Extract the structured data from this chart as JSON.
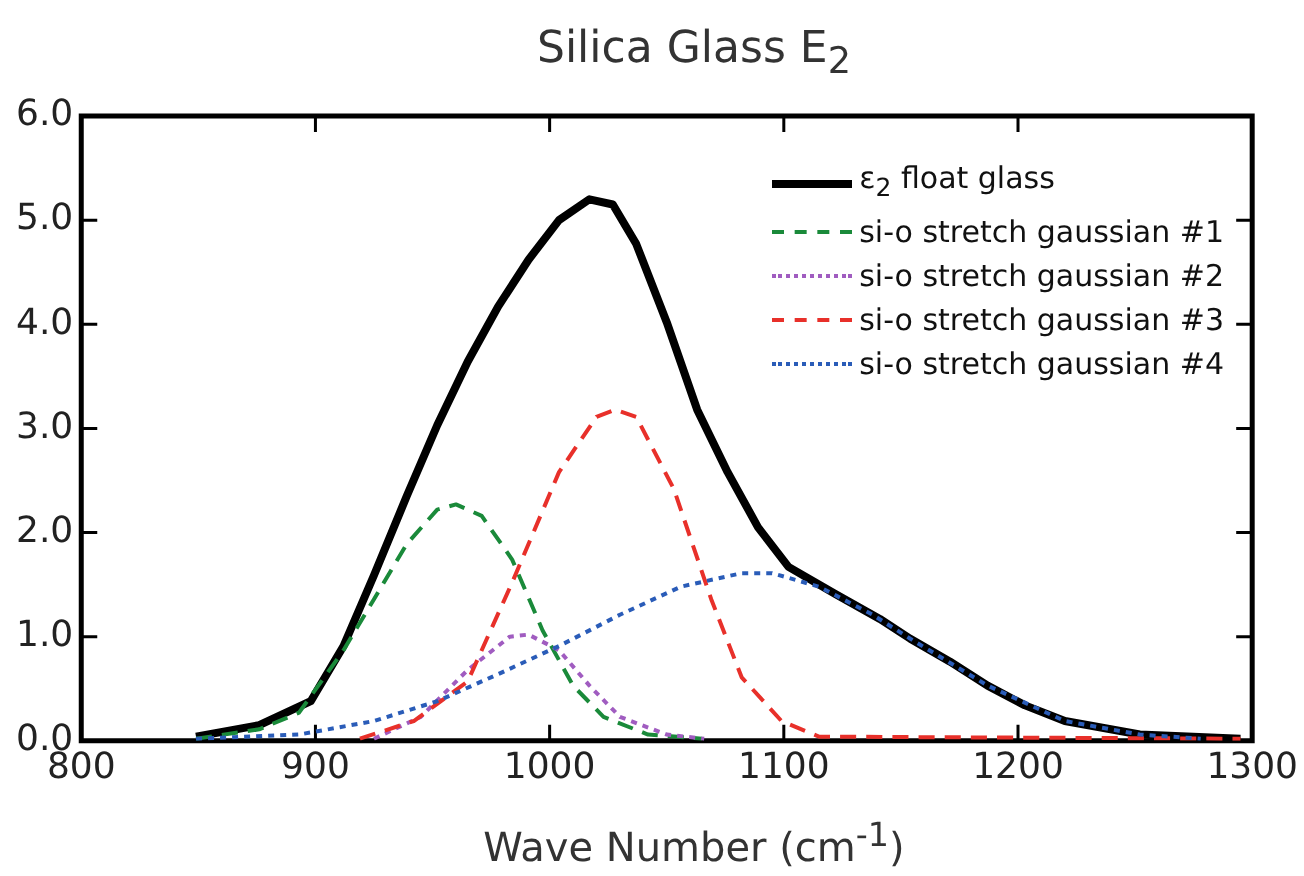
{
  "chart_data": {
    "type": "line",
    "title": "Silica Glass E$_{2}$",
    "xlabel": "Wave Number (cm$^{-1}$)",
    "xlim": [
      800,
      1300
    ],
    "xticks": [
      800,
      900,
      1000,
      1100,
      1200,
      1300
    ],
    "ylim": [
      0,
      6
    ],
    "yticks": [
      {
        "value": 0,
        "label": "0.0"
      },
      {
        "value": 1,
        "label": "1.0"
      },
      {
        "value": 2,
        "label": "2.0"
      },
      {
        "value": 3,
        "label": "3.0"
      },
      {
        "value": 4,
        "label": "4.0"
      },
      {
        "value": 5,
        "label": "5.0"
      },
      {
        "value": 6,
        "label": "6.0"
      }
    ],
    "grid": false,
    "legend": "top right",
    "marker": "none",
    "series": [
      {
        "name": "ε$_{2}$ float glass",
        "color": "#000000",
        "line_style": "solid",
        "x": [
          849,
          876,
          898,
          912,
          925,
          939,
          952,
          965,
          978,
          991,
          1004,
          1017,
          1027,
          1037,
          1050,
          1063,
          1076,
          1089,
          1102,
          1122,
          1141,
          1154,
          1171,
          1187,
          1203,
          1220,
          1252,
          1295
        ],
        "values": [
          0.04,
          0.15,
          0.38,
          0.91,
          1.59,
          2.35,
          3.03,
          3.64,
          4.17,
          4.62,
          5.0,
          5.2,
          5.15,
          4.77,
          4.02,
          3.18,
          2.58,
          2.05,
          1.67,
          1.41,
          1.17,
          0.98,
          0.76,
          0.53,
          0.34,
          0.19,
          0.06,
          0.02
        ]
      },
      {
        "name": "si-o stretch gaussian #1",
        "color": "#1a8a3a",
        "line_style": "dashed",
        "x": [
          849,
          876,
          893,
          912,
          925,
          939,
          952,
          960,
          971,
          984,
          997,
          1010,
          1023,
          1042,
          1065
        ],
        "values": [
          0.02,
          0.11,
          0.27,
          0.87,
          1.36,
          1.89,
          2.22,
          2.27,
          2.16,
          1.74,
          1.06,
          0.53,
          0.23,
          0.06,
          0.02
        ]
      },
      {
        "name": "si-o stretch gaussian #2",
        "color": "#a05cc0",
        "line_style": "dotted",
        "x": [
          925,
          945,
          965,
          983,
          991,
          1004,
          1017,
          1030,
          1050,
          1066
        ],
        "values": [
          0.02,
          0.23,
          0.68,
          1.0,
          1.02,
          0.87,
          0.53,
          0.23,
          0.06,
          0.02
        ]
      },
      {
        "name": "si-o stretch gaussian #3",
        "color": "#e8302a",
        "line_style": "dashed",
        "x": [
          919,
          942,
          965,
          984,
          1004,
          1020,
          1028,
          1037,
          1053,
          1069,
          1082,
          1099,
          1115,
          1295
        ],
        "values": [
          0.02,
          0.19,
          0.57,
          1.52,
          2.58,
          3.11,
          3.18,
          3.11,
          2.42,
          1.36,
          0.61,
          0.19,
          0.04,
          0.02
        ]
      },
      {
        "name": "si-o stretch gaussian #4",
        "color": "#2a5cb8",
        "line_style": "dotted",
        "x": [
          849,
          893,
          925,
          952,
          978,
          1004,
          1030,
          1056,
          1082,
          1095,
          1115,
          1138,
          1154,
          1187,
          1220,
          1252,
          1278
        ],
        "values": [
          0.02,
          0.06,
          0.19,
          0.38,
          0.64,
          0.91,
          1.21,
          1.48,
          1.61,
          1.61,
          1.48,
          1.21,
          0.98,
          0.53,
          0.19,
          0.06,
          0.02
        ]
      }
    ]
  }
}
